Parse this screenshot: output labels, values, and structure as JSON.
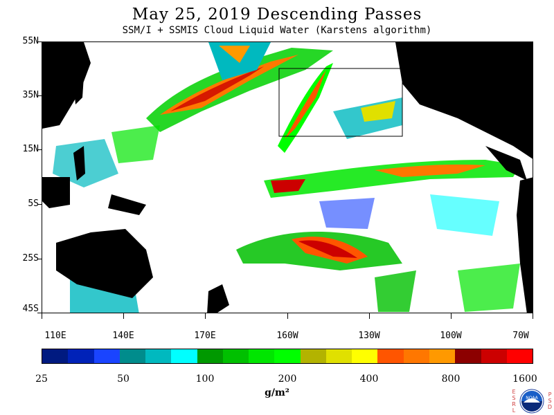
{
  "header": {
    "title": "May 25, 2019  Descending Passes",
    "subtitle": "SSM/I + SSMIS Cloud Liquid Water (Karstens algorithm)"
  },
  "map": {
    "region": "Pacific Ocean",
    "lat_labels": [
      "55N",
      "35N",
      "15N",
      "5S",
      "25S",
      "45S"
    ],
    "lon_labels": [
      "110E",
      "140E",
      "170E",
      "160W",
      "130W",
      "100W",
      "70W"
    ],
    "land_color": "#000000",
    "no_data_color": "#ffffff"
  },
  "colorbar": {
    "colors": [
      "#001a80",
      "#0022b8",
      "#1a44ff",
      "#008c8c",
      "#00b9bf",
      "#00ffff",
      "#009900",
      "#00c000",
      "#00e600",
      "#00ff00",
      "#b3b300",
      "#e0e000",
      "#ffff00",
      "#ff5500",
      "#ff7700",
      "#ff9900",
      "#8c0000",
      "#cc0000",
      "#ff0000"
    ],
    "tick_labels": [
      "25",
      "50",
      "100",
      "200",
      "400",
      "800",
      "1600"
    ],
    "units": "g/m²"
  },
  "logo": {
    "left_letters": [
      "E",
      "S",
      "R",
      "L"
    ],
    "right_letters": [
      "P",
      "S",
      "D"
    ],
    "emblem_text": "NOAA"
  }
}
